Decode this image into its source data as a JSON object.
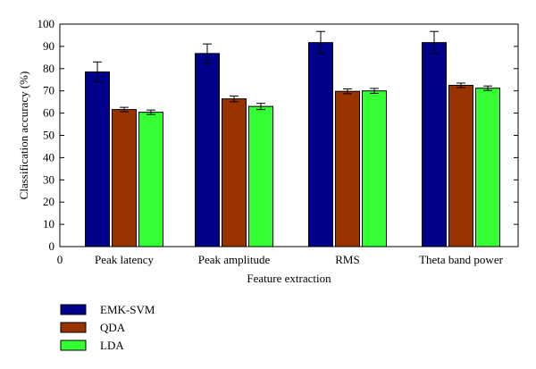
{
  "chart_data": {
    "type": "bar",
    "categories": [
      "Peak latency",
      "Peak amplitude",
      "RMS",
      "Theta band power"
    ],
    "series": [
      {
        "name": "EMK-SVM",
        "values": [
          78.5,
          86.8,
          91.7,
          91.7
        ],
        "errors": [
          4.5,
          4.3,
          5.0,
          5.0
        ],
        "color": "#00008b"
      },
      {
        "name": "QDA",
        "values": [
          61.6,
          66.4,
          69.8,
          72.5
        ],
        "errors": [
          1.0,
          1.3,
          1.1,
          1.0
        ],
        "color": "#993300"
      },
      {
        "name": "LDA",
        "values": [
          60.4,
          63.0,
          70.0,
          71.2
        ],
        "errors": [
          1.0,
          1.4,
          1.1,
          1.0
        ],
        "color": "#33ff33"
      }
    ],
    "xlabel": "Feature extraction",
    "ylabel": "Classification accuracy (%)",
    "ylim": [
      0,
      100
    ],
    "yticks": [
      "0",
      "10",
      "20",
      "30",
      "40",
      "50",
      "60",
      "70",
      "80",
      "90",
      "100"
    ],
    "x_origin_label": "0",
    "grid": false,
    "legend_position": "below-left"
  }
}
